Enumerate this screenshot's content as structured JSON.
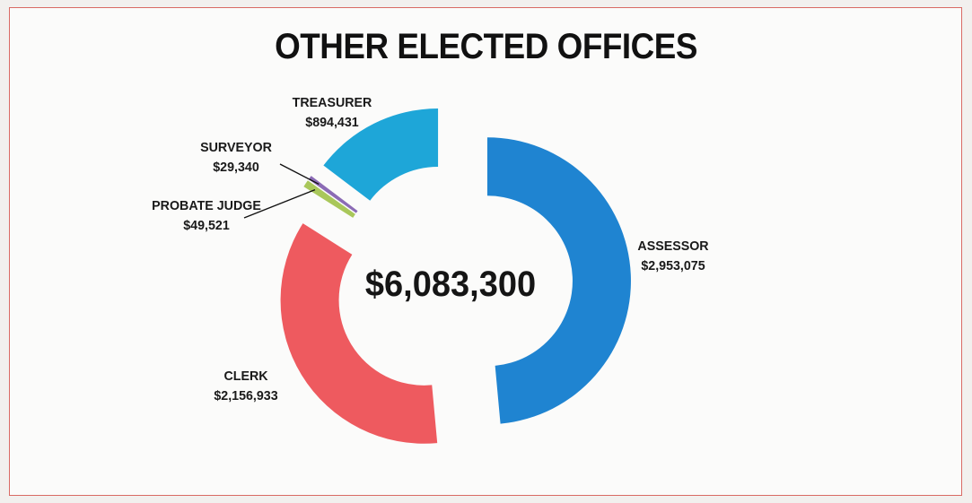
{
  "chart_data": {
    "type": "pie",
    "style": "exploded donut",
    "title": "OTHER ELECTED OFFICES",
    "center_label": "$6,083,300",
    "slices": [
      {
        "name": "ASSESSOR",
        "value": 2953075,
        "value_label": "$2,953,075",
        "color": "#1f84d1"
      },
      {
        "name": "CLERK",
        "value": 2156933,
        "value_label": "$2,156,933",
        "color": "#ee5a5f"
      },
      {
        "name": "PROBATE JUDGE",
        "value": 49521,
        "value_label": "$49,521",
        "color": "#a9c75a"
      },
      {
        "name": "SURVEYOR",
        "value": 29340,
        "value_label": "$29,340",
        "color": "#8b6bb5"
      },
      {
        "name": "TREASURER",
        "value": 894431,
        "value_label": "$894,431",
        "color": "#1ea6d8"
      }
    ]
  }
}
